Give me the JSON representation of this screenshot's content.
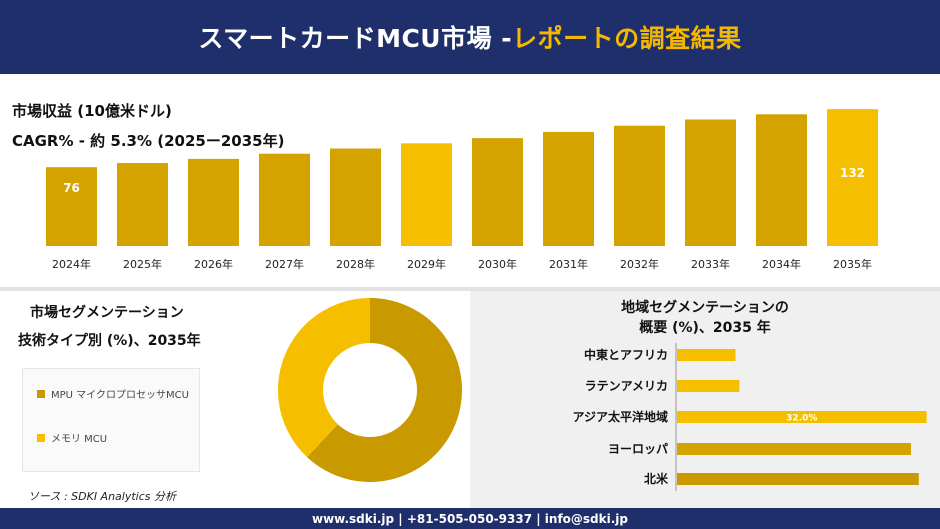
{
  "header": {
    "title_main": "スマートカードMCU市場 -",
    "title_accent": "レポートの調査結果"
  },
  "kpi": {
    "line1": "市場収益 (10億米ドル)",
    "line2": "CAGR% - 約 5.3% (2025ー2035年)"
  },
  "chart_data": [
    {
      "type": "bar",
      "categories": [
        "2024年",
        "2025年",
        "2026年",
        "2027年",
        "2028年",
        "2029年",
        "2030年",
        "2031年",
        "2032年",
        "2033年",
        "2034年",
        "2035年"
      ],
      "values": [
        76,
        80,
        84,
        89,
        94,
        99,
        104,
        110,
        116,
        122,
        127,
        132
      ],
      "data_labels": {
        "0": "76",
        "11": "132"
      },
      "ylim": [
        0,
        135
      ],
      "colors": {
        "bar": "#d4a300",
        "highlight": "#f5bf00",
        "label": "#ffffff",
        "tick": "#222222"
      }
    },
    {
      "type": "pie",
      "title": "市場セグメンテーション",
      "subtitle": "技術タイプ別 (%)、2035年",
      "slices": [
        {
          "name": "MPU マイクロプロセッサMCU",
          "value": 62,
          "color": "#c89a00"
        },
        {
          "name": "メモリ MCU",
          "value": 38,
          "color": "#f5bf00"
        }
      ],
      "legend_position": "left"
    },
    {
      "type": "bar",
      "orientation": "horizontal",
      "title": "地域セグメンテーションの",
      "subtitle": "概要 (%)、2035 年",
      "categories": [
        "中東とアフリカ",
        "ラテンアメリカ",
        "アジア太平洋地域",
        "ヨーロッパ",
        "北米"
      ],
      "values": [
        7.5,
        8.0,
        32.0,
        30.0,
        31.0
      ],
      "data_labels": {
        "2": "32.0%"
      },
      "xlim": [
        0,
        50
      ],
      "colors": [
        "#f5bf00",
        "#f5bf00",
        "#f5bf00",
        "#d4a300",
        "#c89a00"
      ]
    }
  ],
  "source": "ソース : SDKI Analytics 分析",
  "footer": {
    "text": "www.sdki.jp | +81-505-050-9337 | info@sdki.jp"
  }
}
